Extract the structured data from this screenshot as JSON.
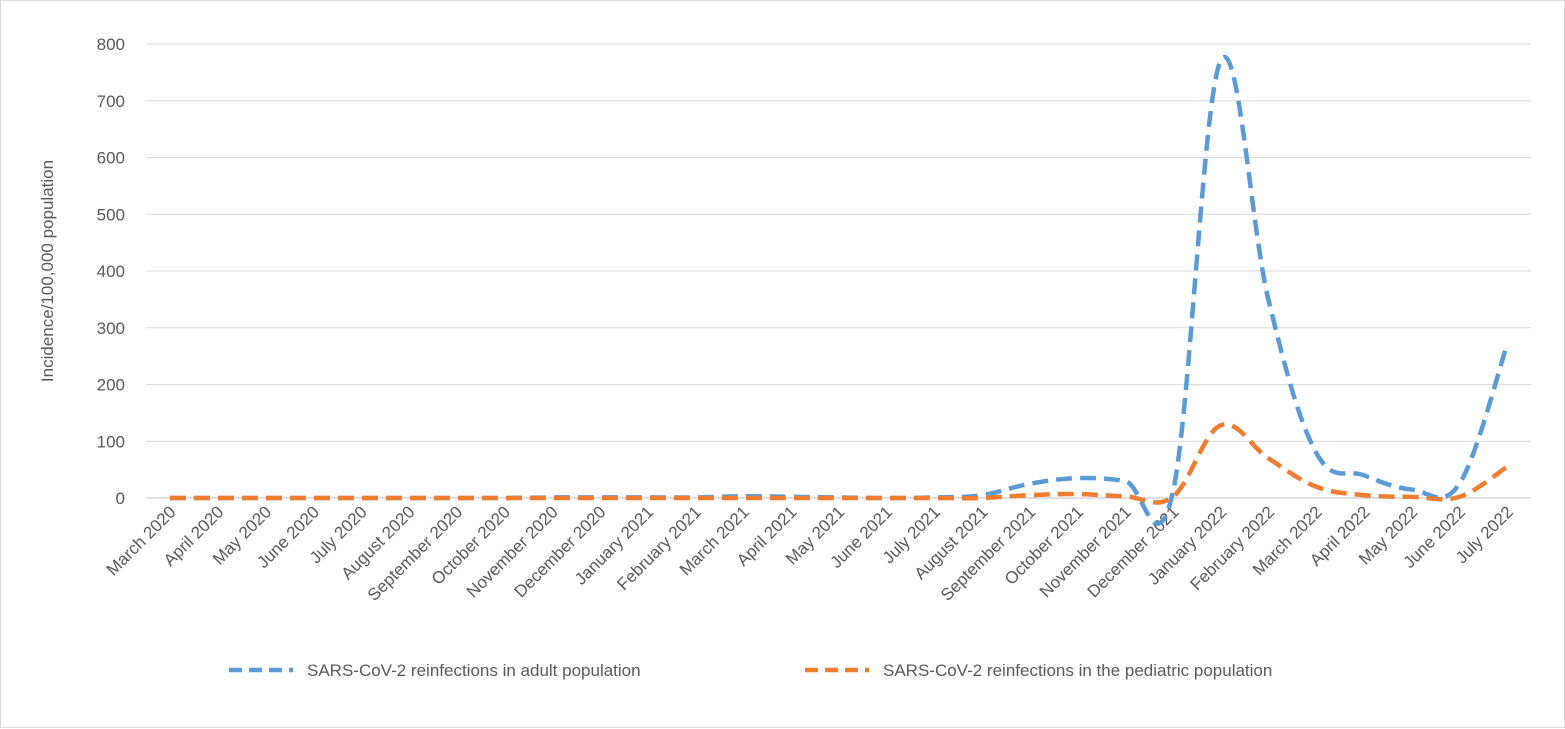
{
  "chart_data": {
    "type": "line",
    "title": "",
    "xlabel": "",
    "ylabel": "Incidence/100,000 population",
    "ylim": [
      0,
      800
    ],
    "yticks": [
      0,
      100,
      200,
      300,
      400,
      500,
      600,
      700,
      800
    ],
    "grid": true,
    "legend_position": "bottom",
    "categories": [
      "March 2020",
      "April 2020",
      "May 2020",
      "June 2020",
      "July 2020",
      "August 2020",
      "September 2020",
      "October 2020",
      "November 2020",
      "December 2020",
      "January 2021",
      "February 2021",
      "March 2021",
      "April 2021",
      "May 2021",
      "June 2021",
      "July 2021",
      "August 2021",
      "September 2021",
      "October 2021",
      "November 2021",
      "December 2021",
      "January 2022",
      "February 2022",
      "March 2022",
      "April 2022",
      "May 2022",
      "June 2022",
      "July 2022"
    ],
    "series": [
      {
        "name": "SARS-CoV-2 reinfections in adult population",
        "color": "#5b9bd5",
        "dash": "dashed",
        "values": [
          0,
          0,
          0,
          0,
          0,
          0,
          0,
          0,
          1,
          1,
          1,
          1,
          3,
          2,
          1,
          0,
          1,
          5,
          25,
          35,
          30,
          10,
          770,
          350,
          80,
          40,
          15,
          25,
          270
        ]
      },
      {
        "name": "SARS-CoV-2 reinfections in the pediatric population",
        "color": "#ed7d31",
        "dash": "dashed",
        "values": [
          0,
          0,
          0,
          0,
          0,
          0,
          0,
          0,
          0,
          0,
          0,
          0,
          0,
          0,
          0,
          0,
          0,
          0,
          5,
          7,
          3,
          2,
          128,
          70,
          20,
          5,
          2,
          2,
          55
        ]
      }
    ]
  }
}
